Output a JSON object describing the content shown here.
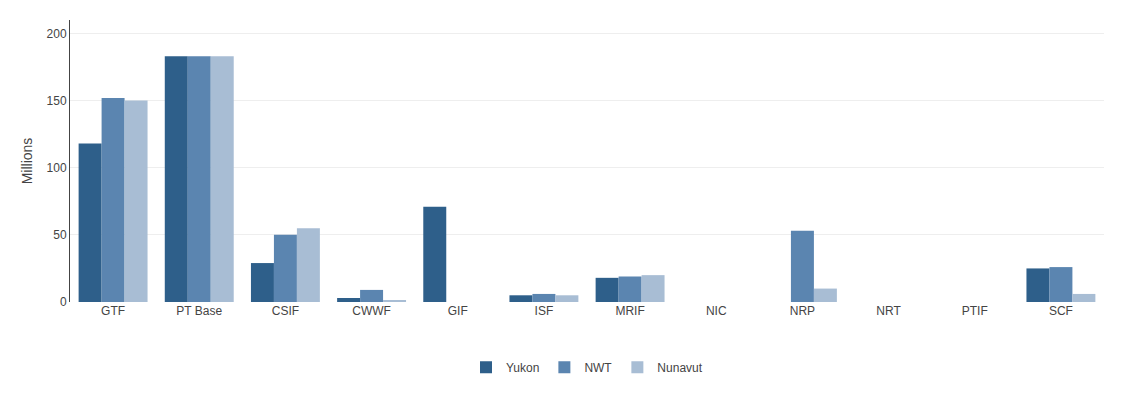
{
  "chart_data": {
    "type": "bar",
    "categories": [
      "GTF",
      "PT Base",
      "CSIF",
      "CWWF",
      "GIF",
      "ISF",
      "MRIF",
      "NIC",
      "NRP",
      "NRT",
      "PTIF",
      "SCF"
    ],
    "series": [
      {
        "name": "Yukon",
        "color": "#2E5F8A",
        "values": [
          118,
          183,
          29,
          3,
          71,
          5,
          18,
          0,
          0,
          0,
          0,
          25
        ]
      },
      {
        "name": "NWT",
        "color": "#5B85B0",
        "values": [
          152,
          183,
          50,
          9,
          0,
          6,
          19,
          0,
          53,
          0,
          0,
          26
        ]
      },
      {
        "name": "Nunavut",
        "color": "#A8BDD4",
        "values": [
          150,
          183,
          55,
          1,
          0,
          5,
          20,
          0,
          10,
          0,
          0,
          6
        ]
      }
    ],
    "ylabel": "Millions",
    "ylim": [
      0,
      210
    ],
    "yticks": [
      0,
      50,
      100,
      150,
      200
    ],
    "grid": true,
    "legend": "bottom"
  }
}
